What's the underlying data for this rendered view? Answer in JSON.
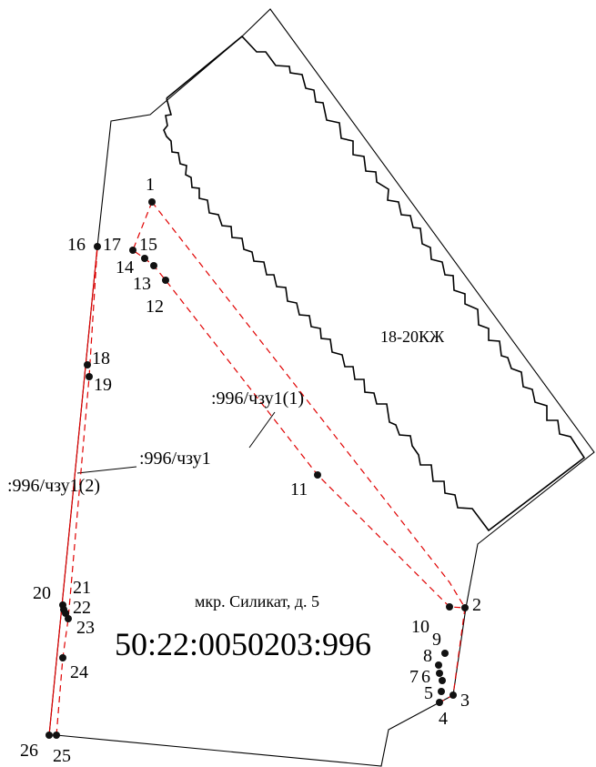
{
  "diagram": {
    "cadastral_number": "50:22:0050203:996",
    "address": "мкр. Силикат, д. 5",
    "building_label": "18-20КЖ",
    "zone_labels": {
      "main": ":996/чзу1",
      "part1": ":996/чзу1(1)",
      "part2": ":996/чзу1(2)"
    },
    "points": [
      "1",
      "2",
      "3",
      "4",
      "5",
      "6",
      "7",
      "8",
      "9",
      "10",
      "11",
      "12",
      "13",
      "14",
      "15",
      "16",
      "17",
      "18",
      "19",
      "20",
      "21",
      "22",
      "23",
      "24",
      "25",
      "26"
    ],
    "colors": {
      "parcel": "#000000",
      "zone": "#e00000",
      "point": "#111111"
    }
  }
}
